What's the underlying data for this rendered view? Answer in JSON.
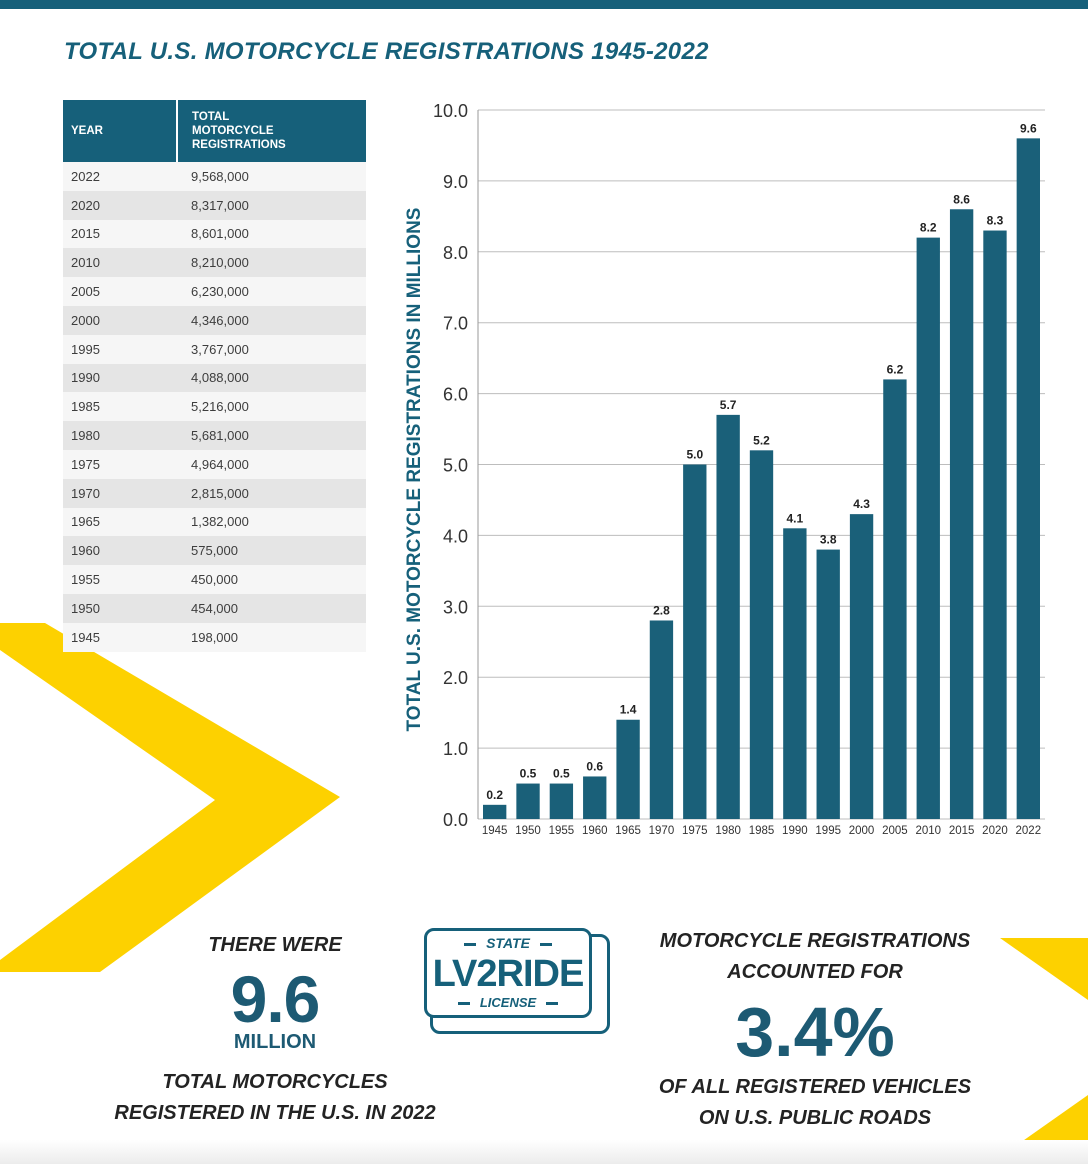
{
  "title": "TOTAL U.S. MOTORCYCLE REGISTRATIONS 1945-2022",
  "colors": {
    "bar": "#1a6079",
    "accent_yellow": "#fdd100",
    "heading": "#16607a"
  },
  "table": {
    "headers": {
      "year": "YEAR",
      "total_lines": [
        "TOTAL",
        "MOTORCYCLE",
        "REGISTRATIONS"
      ]
    },
    "rows": [
      {
        "year": "2022",
        "total": "9,568,000"
      },
      {
        "year": "2020",
        "total": "8,317,000"
      },
      {
        "year": "2015",
        "total": "8,601,000"
      },
      {
        "year": "2010",
        "total": "8,210,000"
      },
      {
        "year": "2005",
        "total": "6,230,000"
      },
      {
        "year": "2000",
        "total": "4,346,000"
      },
      {
        "year": "1995",
        "total": "3,767,000"
      },
      {
        "year": "1990",
        "total": "4,088,000"
      },
      {
        "year": "1985",
        "total": "5,216,000"
      },
      {
        "year": "1980",
        "total": "5,681,000"
      },
      {
        "year": "1975",
        "total": "4,964,000"
      },
      {
        "year": "1970",
        "total": "2,815,000"
      },
      {
        "year": "1965",
        "total": "1,382,000"
      },
      {
        "year": "1960",
        "total": "575,000"
      },
      {
        "year": "1955",
        "total": "450,000"
      },
      {
        "year": "1950",
        "total": "454,000"
      },
      {
        "year": "1945",
        "total": "198,000"
      }
    ]
  },
  "chart_data": {
    "type": "bar",
    "categories": [
      "1945",
      "1950",
      "1955",
      "1960",
      "1965",
      "1970",
      "1975",
      "1980",
      "1985",
      "1990",
      "1995",
      "2000",
      "2005",
      "2010",
      "2015",
      "2020",
      "2022"
    ],
    "values": [
      0.2,
      0.5,
      0.5,
      0.6,
      1.4,
      2.8,
      5.0,
      5.7,
      5.2,
      4.1,
      3.8,
      4.3,
      6.2,
      8.2,
      8.6,
      8.3,
      9.6
    ],
    "value_labels": [
      "0.2",
      "0.5",
      "0.5",
      "0.6",
      "1.4",
      "2.8",
      "5.0",
      "5.7",
      "5.2",
      "4.1",
      "3.8",
      "4.3",
      "6.2",
      "8.2",
      "8.6",
      "8.3",
      "9.6"
    ],
    "ylabel": "TOTAL U.S. MOTORCYCLE REGISTRATIONS IN MILLIONS",
    "xlabel": "",
    "ylim": [
      0,
      10
    ],
    "yticks": [
      "0.0",
      "1.0",
      "2.0",
      "3.0",
      "4.0",
      "5.0",
      "6.0",
      "7.0",
      "8.0",
      "9.0",
      "10.0"
    ],
    "grid": true
  },
  "callout_left": {
    "line1": "THERE WERE",
    "number": "9.6",
    "unit": "MILLION",
    "line2": "TOTAL MOTORCYCLES",
    "line3": "REGISTERED IN THE U.S. IN 2022"
  },
  "plate": {
    "top": "STATE",
    "main": "LV2RIDE",
    "bottom": "LICENSE"
  },
  "callout_right": {
    "line1": "MOTORCYCLE REGISTRATIONS",
    "line2": "ACCOUNTED FOR",
    "number": "3.4%",
    "line3": "OF ALL REGISTERED VEHICLES",
    "line4": "ON U.S. PUBLIC ROADS"
  }
}
